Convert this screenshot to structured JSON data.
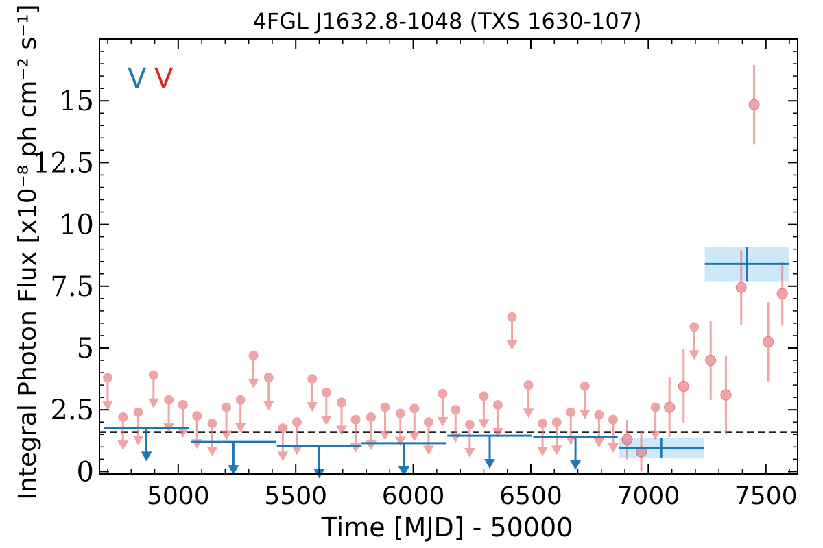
{
  "chart_data": {
    "type": "scatter",
    "title": "4FGL J1632.8-1048 (TXS 1630-107)",
    "xlabel": "Time [MJD] - 50000",
    "ylabel": "Integral Photon Flux [x10⁻⁸ ph cm⁻² s⁻¹]",
    "xlim": [
      4665,
      7635
    ],
    "ylim": [
      -0.1,
      17.5
    ],
    "xticks": [
      5000,
      5500,
      6000,
      6500,
      7000,
      7500
    ],
    "xtick_labels": [
      "5000",
      "5500",
      "6000",
      "6500",
      "7000",
      "7500"
    ],
    "yticks": [
      0,
      2.5,
      5,
      7.5,
      10,
      12.5,
      15
    ],
    "ytick_labels": [
      "0",
      "2.5",
      "5",
      "7.5",
      "10",
      "12.5",
      "15"
    ],
    "grid": false,
    "legend": {
      "placement": "top-left",
      "entries": [
        {
          "label": "V",
          "color": "#1f77b4"
        },
        {
          "label": "V",
          "color": "#d62728"
        }
      ]
    },
    "reference_line": {
      "y": 1.6,
      "style": "dashed",
      "color": "#000000"
    },
    "series": [
      {
        "color": "#1f77b4",
        "bins": [
          {
            "x": 4865,
            "x_err": 180,
            "y": 1.75,
            "type": "upper_limit"
          },
          {
            "x": 5235,
            "x_err": 180,
            "y": 1.2,
            "type": "upper_limit"
          },
          {
            "x": 5600,
            "x_err": 180,
            "y": 1.05,
            "type": "upper_limit"
          },
          {
            "x": 5960,
            "x_err": 180,
            "y": 1.15,
            "type": "upper_limit"
          },
          {
            "x": 6325,
            "x_err": 180,
            "y": 1.45,
            "type": "upper_limit"
          },
          {
            "x": 6690,
            "x_err": 180,
            "y": 1.4,
            "type": "upper_limit"
          },
          {
            "x": 7055,
            "x_err": 180,
            "y": 0.95,
            "y_err": 0.4,
            "type": "detection"
          },
          {
            "x": 7420,
            "x_err": 180,
            "y": 8.4,
            "y_err": 0.7,
            "type": "detection"
          }
        ]
      },
      {
        "color": "#e8767a",
        "upper_limits": [
          {
            "x": 4700,
            "y": 3.8
          },
          {
            "x": 4765,
            "y": 2.2
          },
          {
            "x": 4830,
            "y": 2.4
          },
          {
            "x": 4895,
            "y": 3.9
          },
          {
            "x": 4960,
            "y": 2.9
          },
          {
            "x": 5020,
            "y": 2.7
          },
          {
            "x": 5080,
            "y": 2.25
          },
          {
            "x": 5145,
            "y": 1.95
          },
          {
            "x": 5205,
            "y": 2.6
          },
          {
            "x": 5265,
            "y": 2.9
          },
          {
            "x": 5320,
            "y": 4.7
          },
          {
            "x": 5385,
            "y": 3.8
          },
          {
            "x": 5445,
            "y": 1.75
          },
          {
            "x": 5505,
            "y": 2.0
          },
          {
            "x": 5570,
            "y": 3.75
          },
          {
            "x": 5630,
            "y": 3.2
          },
          {
            "x": 5695,
            "y": 2.8
          },
          {
            "x": 5755,
            "y": 2.1
          },
          {
            "x": 5820,
            "y": 2.2
          },
          {
            "x": 5880,
            "y": 2.6
          },
          {
            "x": 5945,
            "y": 2.35
          },
          {
            "x": 6005,
            "y": 2.55
          },
          {
            "x": 6065,
            "y": 2.0
          },
          {
            "x": 6125,
            "y": 3.15
          },
          {
            "x": 6180,
            "y": 2.5
          },
          {
            "x": 6240,
            "y": 1.9
          },
          {
            "x": 6300,
            "y": 3.05
          },
          {
            "x": 6360,
            "y": 2.7
          },
          {
            "x": 6420,
            "y": 6.25
          },
          {
            "x": 6490,
            "y": 3.5
          },
          {
            "x": 6550,
            "y": 1.95
          },
          {
            "x": 6610,
            "y": 2.0
          },
          {
            "x": 6670,
            "y": 2.4
          },
          {
            "x": 6730,
            "y": 3.45
          },
          {
            "x": 6790,
            "y": 2.3
          },
          {
            "x": 6850,
            "y": 2.1
          },
          {
            "x": 7030,
            "y": 2.6
          },
          {
            "x": 7195,
            "y": 5.85
          }
        ],
        "detections": [
          {
            "x": 6910,
            "y": 1.3,
            "y_err": 0.8
          },
          {
            "x": 6970,
            "y": 0.8,
            "y_err": 0.8
          },
          {
            "x": 7090,
            "y": 2.6,
            "y_err": 1.2
          },
          {
            "x": 7150,
            "y": 3.45,
            "y_err": 1.5
          },
          {
            "x": 7265,
            "y": 4.5,
            "y_err": 1.6
          },
          {
            "x": 7330,
            "y": 3.1,
            "y_err": 1.6
          },
          {
            "x": 7395,
            "y": 7.45,
            "y_err": 1.5
          },
          {
            "x": 7450,
            "y": 14.85,
            "y_err": 1.6
          },
          {
            "x": 7510,
            "y": 5.25,
            "y_err": 1.6
          },
          {
            "x": 7570,
            "y": 7.2,
            "y_err": 1.3
          }
        ]
      }
    ]
  }
}
